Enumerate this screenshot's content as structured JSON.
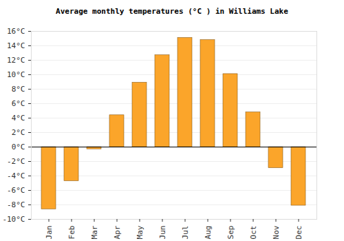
{
  "chart_data": {
    "type": "bar",
    "title": "Average monthly temperatures (°C ) in Williams Lake",
    "categories": [
      "Jan",
      "Feb",
      "Mar",
      "Apr",
      "May",
      "Jun",
      "Jul",
      "Aug",
      "Sep",
      "Oct",
      "Nov",
      "Dec"
    ],
    "values": [
      -8.6,
      -4.7,
      -0.3,
      4.4,
      8.9,
      12.7,
      15.1,
      14.8,
      10.1,
      4.8,
      -2.9,
      -8.1
    ],
    "color": "#fba52a",
    "ylim": [
      -10,
      16
    ],
    "yticks": [
      {
        "value": -10,
        "label": "-10°C"
      },
      {
        "value": -8,
        "label": "-8°C"
      },
      {
        "value": -6,
        "label": "-6°C"
      },
      {
        "value": -4,
        "label": "-4°C"
      },
      {
        "value": -2,
        "label": "-2°C"
      },
      {
        "value": 0,
        "label": "0°C"
      },
      {
        "value": 2,
        "label": "2°C"
      },
      {
        "value": 4,
        "label": "4°C"
      },
      {
        "value": 6,
        "label": "6°C"
      },
      {
        "value": 8,
        "label": "8°C"
      },
      {
        "value": 10,
        "label": "10°C"
      },
      {
        "value": 12,
        "label": "12°C"
      },
      {
        "value": 14,
        "label": "14°C"
      },
      {
        "value": 16,
        "label": "16°C"
      }
    ],
    "grid": true
  }
}
